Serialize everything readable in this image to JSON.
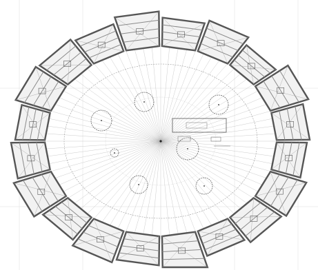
{
  "drawing": {
    "label_main": "",
    "label_small_a": "",
    "label_small_b": "",
    "label_small_c": ""
  },
  "colors": {
    "background": "#ffffff",
    "wall": "#8a8a8a",
    "wall_dark": "#555555",
    "line": "#9a9a9a",
    "ray": "#b5b5b5",
    "hatch": "#a0a0a0",
    "grid": "#d6d6d6"
  },
  "layout_counts": {
    "outer_room_segments": 20,
    "radial_rays": 80,
    "inner_circles": 7
  }
}
